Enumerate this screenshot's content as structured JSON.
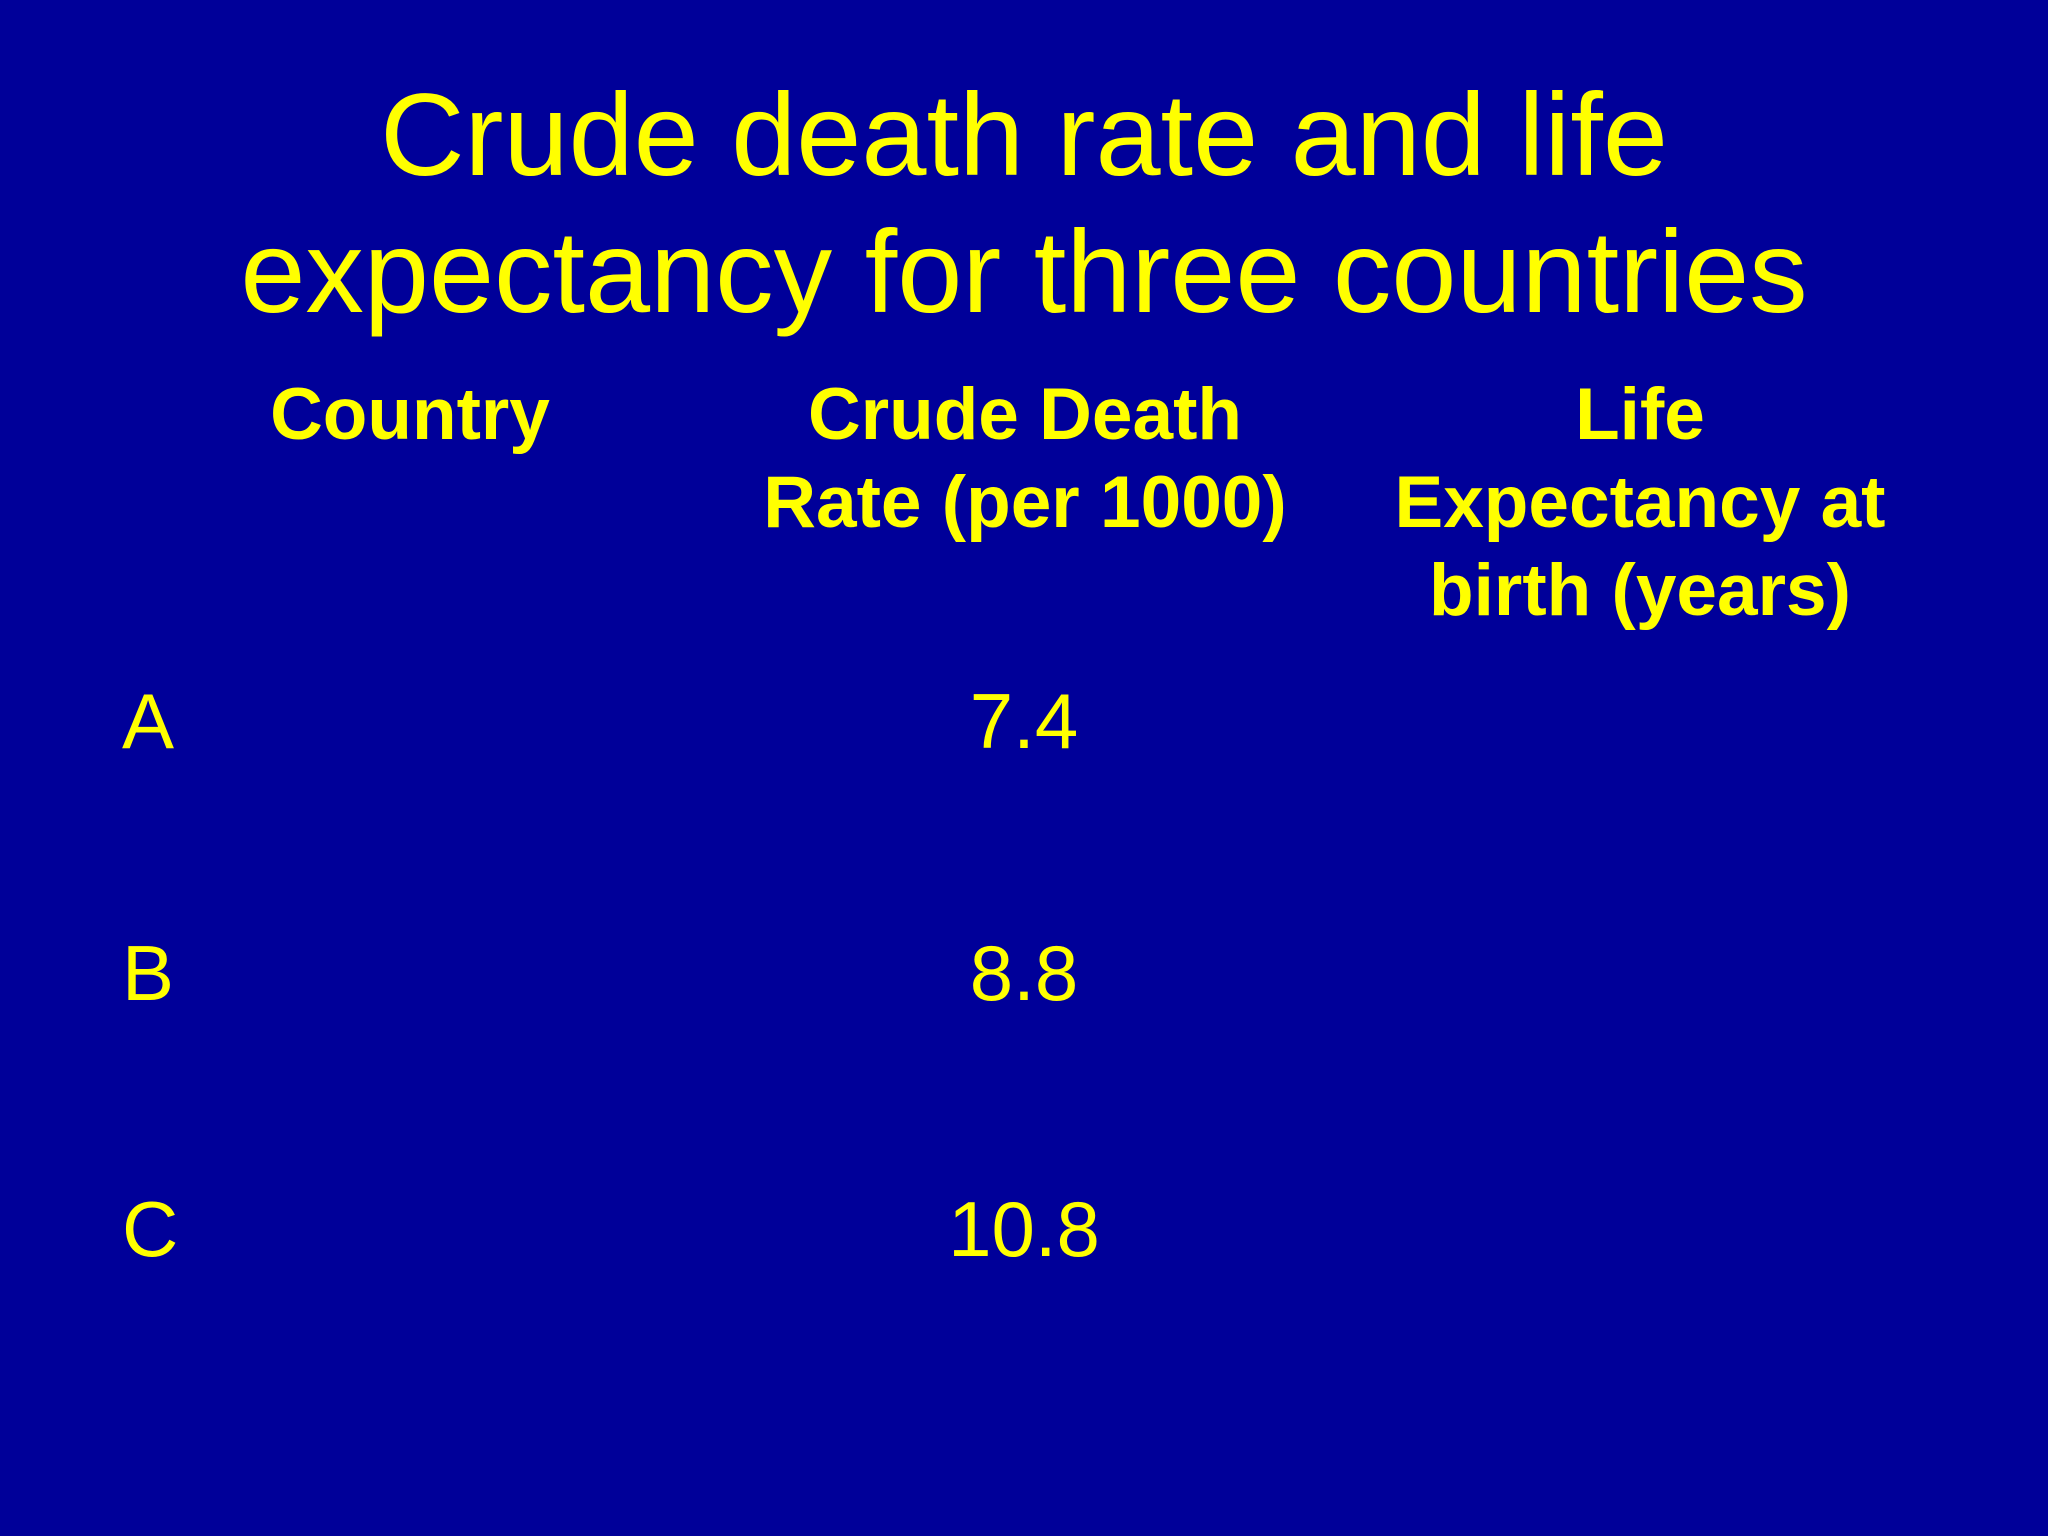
{
  "slide": {
    "background_color": "#000099",
    "text_color": "#FFFF00",
    "title_lines": [
      "Crude death rate and life",
      "expectancy for three countries"
    ],
    "table": {
      "headers": {
        "country": [
          "Country"
        ],
        "crude_death_rate": [
          "Crude Death",
          "Rate (per 1000)"
        ],
        "life_expectancy": [
          "Life",
          "Expectancy at",
          "birth (years)"
        ]
      },
      "rows": [
        {
          "country": "A",
          "crude_death_rate": "7.4",
          "life_expectancy": ""
        },
        {
          "country": "B",
          "crude_death_rate": "8.8",
          "life_expectancy": ""
        },
        {
          "country": "C",
          "crude_death_rate": "10.8",
          "life_expectancy": ""
        }
      ]
    }
  }
}
